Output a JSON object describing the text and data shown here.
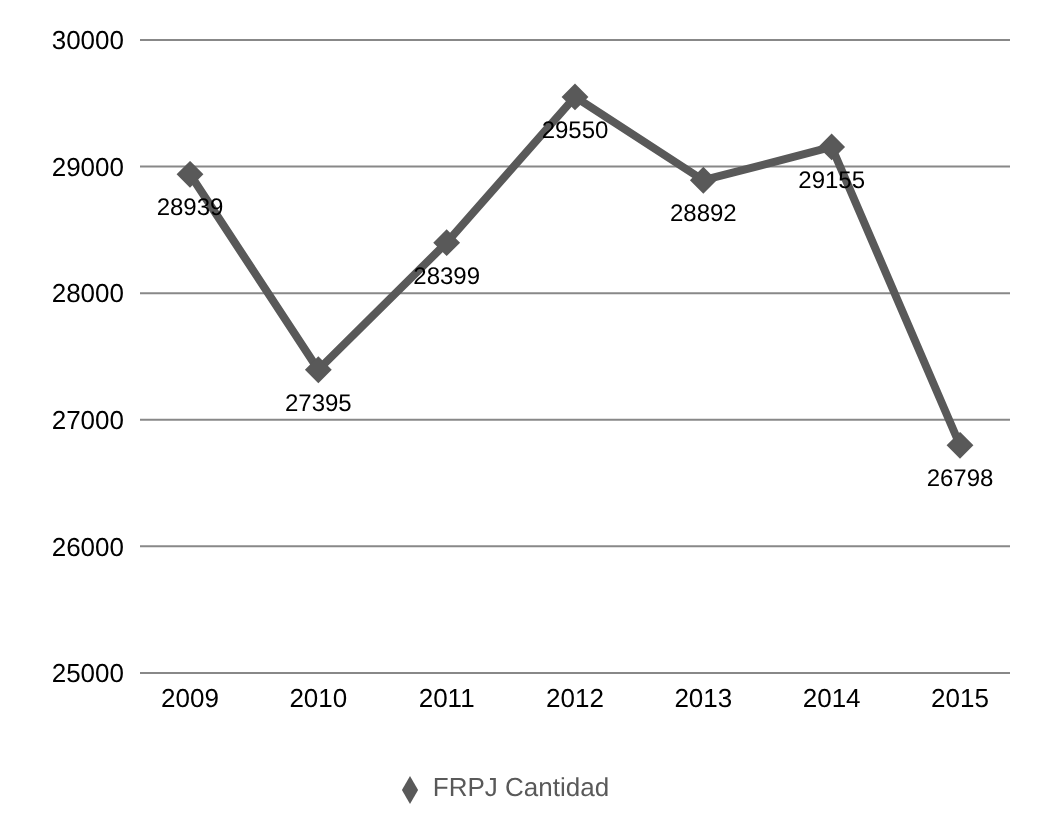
{
  "chart_data": {
    "type": "line",
    "categories": [
      "2009",
      "2010",
      "2011",
      "2012",
      "2013",
      "2014",
      "2015"
    ],
    "series": [
      {
        "name": "FRPJ Cantidad",
        "color": "#595959",
        "values": [
          28939,
          27395,
          28399,
          29550,
          28892,
          29155,
          26798
        ]
      }
    ],
    "ylim": [
      25000,
      30000
    ],
    "yticks": [
      25000,
      26000,
      27000,
      28000,
      29000,
      30000
    ],
    "grid": "y",
    "legend": "bottom",
    "marker": "diamond",
    "data_labels": true
  }
}
